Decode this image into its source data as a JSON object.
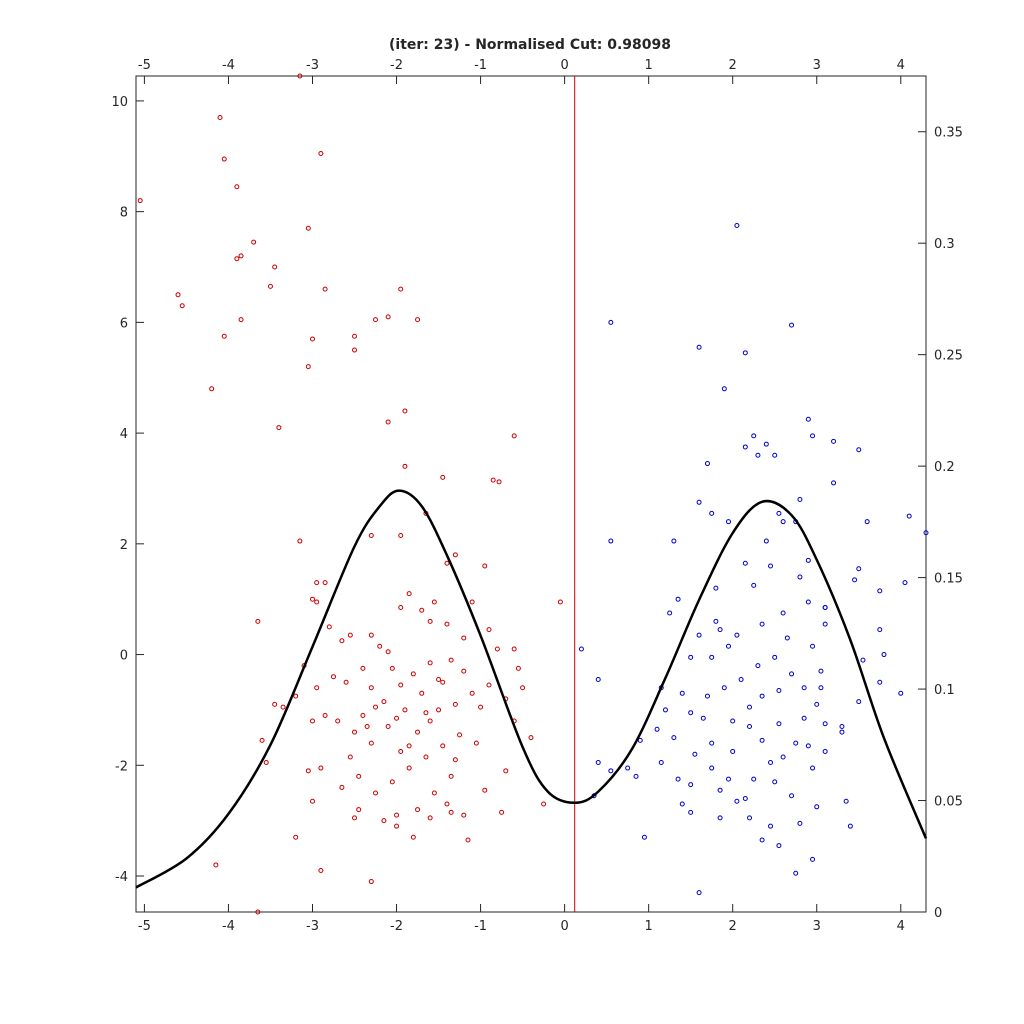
{
  "chart_data": {
    "type": "scatter",
    "title": "(iter: 23) - Normalised Cut: 0.98098",
    "xlabel": "",
    "ylabel": "",
    "xlim": [
      -5.1,
      4.3
    ],
    "ylim": [
      -4.65,
      10.45
    ],
    "y2lim": [
      0,
      0.375
    ],
    "grid": false,
    "x_ticks": [
      -5,
      -4,
      -3,
      -2,
      -1,
      0,
      1,
      2,
      3,
      4
    ],
    "y_ticks": [
      -4,
      -2,
      0,
      2,
      4,
      6,
      8,
      10
    ],
    "y2_ticks": [
      0,
      0.05,
      0.1,
      0.15,
      0.2,
      0.25,
      0.3,
      0.35
    ],
    "x_tick_labels": [
      "-5",
      "-4",
      "-3",
      "-2",
      "-1",
      "0",
      "1",
      "2",
      "3",
      "4"
    ],
    "y_tick_labels": [
      "-4",
      "-2",
      "0",
      "2",
      "4",
      "6",
      "8",
      "10"
    ],
    "y2_tick_labels": [
      "0",
      "0.05",
      "0.1",
      "0.15",
      "0.2",
      "0.25",
      "0.3",
      "0.35"
    ],
    "cut_line": {
      "x": 0.12,
      "color": "#cc0000"
    },
    "density_curve": {
      "axis": "right",
      "color": "#000000",
      "points": [
        [
          -5.1,
          0.011
        ],
        [
          -4.5,
          0.024
        ],
        [
          -4.0,
          0.044
        ],
        [
          -3.5,
          0.075
        ],
        [
          -3.0,
          0.119
        ],
        [
          -2.5,
          0.164
        ],
        [
          -2.2,
          0.182
        ],
        [
          -1.97,
          0.189
        ],
        [
          -1.7,
          0.182
        ],
        [
          -1.4,
          0.16
        ],
        [
          -1.0,
          0.124
        ],
        [
          -0.5,
          0.074
        ],
        [
          -0.2,
          0.054
        ],
        [
          0.12,
          0.049
        ],
        [
          0.4,
          0.054
        ],
        [
          0.8,
          0.073
        ],
        [
          1.2,
          0.105
        ],
        [
          1.6,
          0.14
        ],
        [
          2.0,
          0.17
        ],
        [
          2.35,
          0.184
        ],
        [
          2.7,
          0.178
        ],
        [
          3.0,
          0.158
        ],
        [
          3.4,
          0.122
        ],
        [
          3.8,
          0.078
        ],
        [
          4.3,
          0.033
        ]
      ]
    },
    "series": [
      {
        "color": "#cc0000",
        "points": [
          [
            -5.05,
            8.2
          ],
          [
            -4.6,
            6.5
          ],
          [
            -4.55,
            6.3
          ],
          [
            -4.2,
            4.8
          ],
          [
            -4.1,
            9.7
          ],
          [
            -4.05,
            8.95
          ],
          [
            -4.05,
            5.75
          ],
          [
            -3.9,
            8.45
          ],
          [
            -3.9,
            7.15
          ],
          [
            -3.85,
            7.2
          ],
          [
            -3.85,
            6.05
          ],
          [
            -3.7,
            7.45
          ],
          [
            -3.5,
            6.65
          ],
          [
            -3.45,
            7.0
          ],
          [
            -3.4,
            4.1
          ],
          [
            -3.15,
            10.45
          ],
          [
            -3.05,
            7.7
          ],
          [
            -3.05,
            5.2
          ],
          [
            -3.0,
            5.7
          ],
          [
            -2.9,
            9.05
          ],
          [
            -2.85,
            6.6
          ],
          [
            -2.5,
            5.75
          ],
          [
            -2.5,
            5.5
          ],
          [
            -2.25,
            6.05
          ],
          [
            -2.1,
            6.1
          ],
          [
            -2.1,
            4.2
          ],
          [
            -1.95,
            6.6
          ],
          [
            -1.9,
            4.4
          ],
          [
            -1.75,
            6.05
          ],
          [
            -1.9,
            3.4
          ],
          [
            -1.45,
            3.2
          ],
          [
            -0.85,
            3.15
          ],
          [
            -0.78,
            3.12
          ],
          [
            -0.6,
            3.95
          ],
          [
            -2.3,
            2.15
          ],
          [
            -1.95,
            2.15
          ],
          [
            -1.65,
            2.55
          ],
          [
            -3.15,
            2.05
          ],
          [
            -1.3,
            1.8
          ],
          [
            -0.95,
            1.6
          ],
          [
            -1.4,
            1.65
          ],
          [
            -2.95,
            1.3
          ],
          [
            -2.85,
            1.3
          ],
          [
            -3.0,
            1.0
          ],
          [
            -2.95,
            0.95
          ],
          [
            -3.65,
            0.6
          ],
          [
            -0.05,
            0.95
          ],
          [
            -2.65,
            0.25
          ],
          [
            -2.3,
            0.35
          ],
          [
            -2.2,
            0.15
          ],
          [
            -2.4,
            -0.25
          ],
          [
            -2.6,
            -0.5
          ],
          [
            -2.3,
            -0.6
          ],
          [
            -2.05,
            -0.25
          ],
          [
            -1.95,
            -0.55
          ],
          [
            -1.8,
            -0.35
          ],
          [
            -1.6,
            -0.15
          ],
          [
            -1.5,
            -0.45
          ],
          [
            -1.35,
            -0.1
          ],
          [
            -1.2,
            -0.3
          ],
          [
            -1.1,
            -0.7
          ],
          [
            -1.3,
            -0.9
          ],
          [
            -1.5,
            -1.0
          ],
          [
            -1.6,
            -1.2
          ],
          [
            -1.75,
            -1.4
          ],
          [
            -1.9,
            -1.0
          ],
          [
            -2.1,
            -1.3
          ],
          [
            -2.3,
            -1.6
          ],
          [
            -2.5,
            -1.4
          ],
          [
            -2.7,
            -1.2
          ],
          [
            -2.85,
            -1.1
          ],
          [
            -3.0,
            -1.2
          ],
          [
            -3.2,
            -0.75
          ],
          [
            -3.35,
            -0.95
          ],
          [
            -3.1,
            -0.2
          ],
          [
            -2.95,
            -0.6
          ],
          [
            -2.8,
            0.5
          ],
          [
            -2.55,
            0.35
          ],
          [
            -1.95,
            0.85
          ],
          [
            -1.85,
            1.1
          ],
          [
            -1.7,
            0.8
          ],
          [
            -1.55,
            0.95
          ],
          [
            -1.4,
            0.55
          ],
          [
            -1.2,
            0.3
          ],
          [
            -1.1,
            0.95
          ],
          [
            -0.9,
            0.45
          ],
          [
            -0.8,
            0.1
          ],
          [
            -0.6,
            0.1
          ],
          [
            -0.55,
            -0.25
          ],
          [
            -0.5,
            -0.6
          ],
          [
            -0.7,
            -0.8
          ],
          [
            -0.9,
            -0.55
          ],
          [
            -1.0,
            -0.95
          ],
          [
            -1.25,
            -1.45
          ],
          [
            -1.45,
            -1.65
          ],
          [
            -1.65,
            -1.85
          ],
          [
            -1.85,
            -2.05
          ],
          [
            -2.05,
            -2.3
          ],
          [
            -2.25,
            -2.5
          ],
          [
            -2.45,
            -2.2
          ],
          [
            -2.65,
            -2.4
          ],
          [
            -2.9,
            -2.05
          ],
          [
            -3.05,
            -2.1
          ],
          [
            -3.0,
            -2.65
          ],
          [
            -3.2,
            -3.3
          ],
          [
            -2.9,
            -3.9
          ],
          [
            -2.3,
            -4.1
          ],
          [
            -3.65,
            -4.65
          ],
          [
            -4.15,
            -3.8
          ],
          [
            -3.6,
            -1.55
          ],
          [
            -3.55,
            -1.95
          ],
          [
            -3.45,
            -0.9
          ],
          [
            -2.0,
            -2.9
          ],
          [
            -1.8,
            -3.3
          ],
          [
            -1.6,
            -2.95
          ],
          [
            -1.4,
            -2.7
          ],
          [
            -1.2,
            -2.9
          ],
          [
            -1.15,
            -3.35
          ],
          [
            -0.75,
            -2.85
          ],
          [
            -0.7,
            -2.1
          ],
          [
            -0.95,
            -2.45
          ],
          [
            -0.25,
            -2.7
          ],
          [
            -0.4,
            -1.5
          ],
          [
            -0.6,
            -1.2
          ],
          [
            -1.05,
            -1.6
          ],
          [
            -1.35,
            -2.2
          ],
          [
            -1.55,
            -2.5
          ],
          [
            -1.75,
            -2.8
          ],
          [
            -2.15,
            -3.0
          ],
          [
            -2.45,
            -2.8
          ],
          [
            -2.5,
            -2.95
          ],
          [
            -2.55,
            -1.85
          ],
          [
            -2.35,
            -1.3
          ],
          [
            -2.15,
            -0.85
          ],
          [
            -2.0,
            -1.15
          ],
          [
            -1.85,
            -1.65
          ],
          [
            -1.7,
            -0.7
          ],
          [
            -1.45,
            -0.5
          ],
          [
            -2.25,
            -0.95
          ],
          [
            -2.4,
            -1.1
          ],
          [
            -2.75,
            -0.4
          ],
          [
            -2.1,
            0.05
          ],
          [
            -1.95,
            -1.75
          ],
          [
            -1.65,
            -1.05
          ],
          [
            -1.3,
            -1.9
          ],
          [
            -1.6,
            0.6
          ],
          [
            -2.0,
            -3.1
          ],
          [
            -1.35,
            -2.85
          ]
        ]
      },
      {
        "color": "#0000cc",
        "points": [
          [
            2.05,
            7.75
          ],
          [
            2.7,
            5.95
          ],
          [
            0.55,
            6.0
          ],
          [
            1.6,
            5.55
          ],
          [
            2.15,
            5.45
          ],
          [
            1.9,
            4.8
          ],
          [
            2.9,
            4.25
          ],
          [
            2.25,
            3.95
          ],
          [
            2.4,
            3.8
          ],
          [
            2.15,
            3.75
          ],
          [
            2.5,
            3.6
          ],
          [
            2.3,
            3.6
          ],
          [
            2.95,
            3.95
          ],
          [
            3.2,
            3.85
          ],
          [
            3.5,
            3.7
          ],
          [
            1.7,
            3.45
          ],
          [
            3.2,
            3.1
          ],
          [
            2.55,
            2.55
          ],
          [
            2.8,
            2.8
          ],
          [
            1.6,
            2.75
          ],
          [
            2.6,
            2.4
          ],
          [
            2.75,
            2.4
          ],
          [
            3.6,
            2.4
          ],
          [
            4.1,
            2.5
          ],
          [
            4.3,
            2.2
          ],
          [
            1.3,
            2.05
          ],
          [
            0.55,
            2.05
          ],
          [
            1.75,
            2.55
          ],
          [
            1.95,
            2.4
          ],
          [
            2.4,
            2.05
          ],
          [
            2.15,
            1.65
          ],
          [
            2.45,
            1.6
          ],
          [
            2.9,
            1.7
          ],
          [
            3.5,
            1.55
          ],
          [
            3.45,
            1.35
          ],
          [
            1.8,
            1.2
          ],
          [
            4.05,
            1.3
          ],
          [
            3.75,
            1.15
          ],
          [
            3.1,
            0.85
          ],
          [
            3.1,
            0.85
          ],
          [
            2.9,
            0.95
          ],
          [
            1.35,
            1.0
          ],
          [
            1.25,
            0.75
          ],
          [
            1.8,
            0.6
          ],
          [
            0.2,
            0.1
          ],
          [
            0.4,
            -0.45
          ],
          [
            1.15,
            -0.6
          ],
          [
            1.5,
            -0.05
          ],
          [
            1.75,
            -0.05
          ],
          [
            2.05,
            0.35
          ],
          [
            2.35,
            0.55
          ],
          [
            2.65,
            0.3
          ],
          [
            2.95,
            0.15
          ],
          [
            3.1,
            0.55
          ],
          [
            3.55,
            -0.1
          ],
          [
            3.75,
            0.45
          ],
          [
            3.8,
            0.0
          ],
          [
            3.75,
            -0.5
          ],
          [
            4.0,
            -0.7
          ],
          [
            3.5,
            -0.85
          ],
          [
            3.3,
            -1.3
          ],
          [
            3.1,
            -1.25
          ],
          [
            2.85,
            -1.15
          ],
          [
            2.55,
            -1.25
          ],
          [
            2.2,
            -1.3
          ],
          [
            2.0,
            -1.75
          ],
          [
            2.35,
            -1.55
          ],
          [
            2.6,
            -1.85
          ],
          [
            2.9,
            -1.65
          ],
          [
            3.1,
            -1.75
          ],
          [
            3.35,
            -2.65
          ],
          [
            3.4,
            -3.1
          ],
          [
            2.95,
            -3.7
          ],
          [
            2.75,
            -3.95
          ],
          [
            2.55,
            -3.45
          ],
          [
            2.35,
            -3.35
          ],
          [
            2.2,
            -2.95
          ],
          [
            2.15,
            -2.6
          ],
          [
            1.95,
            -2.25
          ],
          [
            1.75,
            -2.05
          ],
          [
            1.55,
            -1.8
          ],
          [
            1.3,
            -1.5
          ],
          [
            1.1,
            -1.35
          ],
          [
            0.9,
            -1.55
          ],
          [
            0.75,
            -2.05
          ],
          [
            0.55,
            -2.1
          ],
          [
            0.35,
            -2.55
          ],
          [
            0.4,
            -1.95
          ],
          [
            0.85,
            -2.2
          ],
          [
            0.95,
            -3.3
          ],
          [
            1.15,
            -1.95
          ],
          [
            1.5,
            -2.35
          ],
          [
            1.85,
            -2.95
          ],
          [
            1.6,
            -4.3
          ],
          [
            1.5,
            -2.85
          ],
          [
            1.4,
            -2.7
          ],
          [
            1.35,
            -2.25
          ],
          [
            1.65,
            -1.15
          ],
          [
            1.4,
            -0.7
          ],
          [
            1.5,
            -1.05
          ],
          [
            1.7,
            -0.75
          ],
          [
            1.9,
            -0.6
          ],
          [
            2.1,
            -0.45
          ],
          [
            2.3,
            -0.2
          ],
          [
            2.5,
            -0.05
          ],
          [
            2.7,
            -0.35
          ],
          [
            2.85,
            -0.6
          ],
          [
            3.0,
            -0.9
          ],
          [
            2.75,
            -1.6
          ],
          [
            2.45,
            -1.95
          ],
          [
            2.25,
            -2.25
          ],
          [
            2.05,
            -2.65
          ],
          [
            1.85,
            -2.45
          ],
          [
            2.45,
            -3.1
          ],
          [
            2.7,
            -2.55
          ],
          [
            2.95,
            -2.05
          ],
          [
            2.5,
            -2.3
          ],
          [
            2.8,
            -3.05
          ],
          [
            3.0,
            -2.75
          ],
          [
            3.05,
            -0.6
          ],
          [
            3.3,
            -1.4
          ],
          [
            2.35,
            -0.75
          ],
          [
            2.0,
            -1.2
          ],
          [
            1.75,
            -1.6
          ],
          [
            2.2,
            -0.95
          ],
          [
            2.55,
            -0.65
          ],
          [
            1.95,
            0.15
          ],
          [
            2.6,
            0.75
          ],
          [
            2.25,
            1.25
          ],
          [
            1.85,
            0.45
          ],
          [
            2.8,
            1.4
          ],
          [
            3.05,
            -0.3
          ],
          [
            1.6,
            0.35
          ],
          [
            1.2,
            -1.0
          ]
        ]
      }
    ]
  }
}
